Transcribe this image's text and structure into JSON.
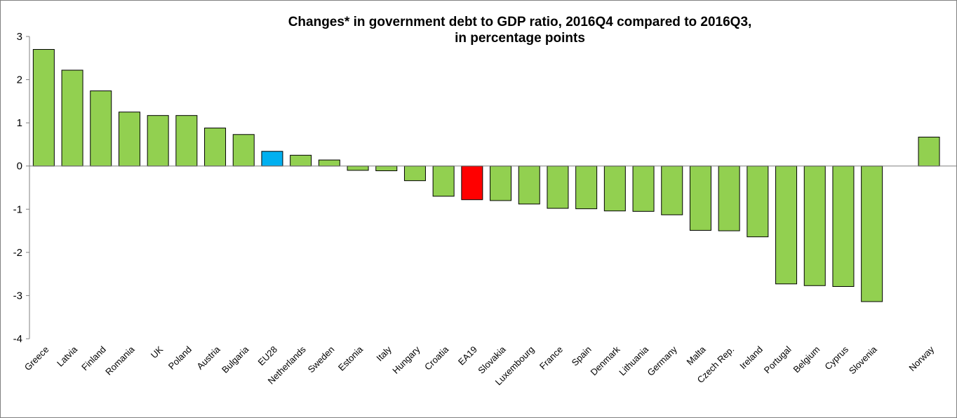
{
  "chart_data": {
    "type": "bar",
    "title": [
      "Changes* in government debt to GDP ratio, 2016Q4 compared to 2016Q3,",
      "in percentage points"
    ],
    "xlabel": "",
    "ylabel": "",
    "ylim": [
      -4,
      3
    ],
    "yticks": [
      "3",
      "2",
      "1",
      "0",
      "-1",
      "-2",
      "-3",
      "-4"
    ],
    "grid": false,
    "legend": "none",
    "categories": [
      "Greece",
      "Latvia",
      "Finland",
      "Romania",
      "UK",
      "Poland",
      "Austria",
      "Bulgaria",
      "EU28",
      "Netherlands",
      "Sweden",
      "Estonia",
      "Italy",
      "Hungary",
      "Croatia",
      "EA19",
      "Slovakia",
      "Luxembourg",
      "France",
      "Spain",
      "Denmark",
      "Lithuania",
      "Germany",
      "Malta",
      "Czech Rep.",
      "Ireland",
      "Portugal",
      "Belgium",
      "Cyprus",
      "Slovenia",
      "",
      "Norway"
    ],
    "values": [
      2.7,
      2.22,
      1.74,
      1.25,
      1.17,
      1.17,
      0.88,
      0.73,
      0.34,
      0.25,
      0.14,
      -0.1,
      -0.11,
      -0.34,
      -0.7,
      -0.78,
      -0.8,
      -0.88,
      -0.98,
      -0.99,
      -1.04,
      -1.05,
      -1.13,
      -1.49,
      -1.5,
      -1.64,
      -2.73,
      -2.77,
      -2.79,
      -3.14,
      null,
      0.67
    ],
    "colors": {
      "default": "#92d050",
      "EU28": "#00b0f0",
      "EA19": "#ff0000",
      "stroke": "#000000"
    }
  }
}
